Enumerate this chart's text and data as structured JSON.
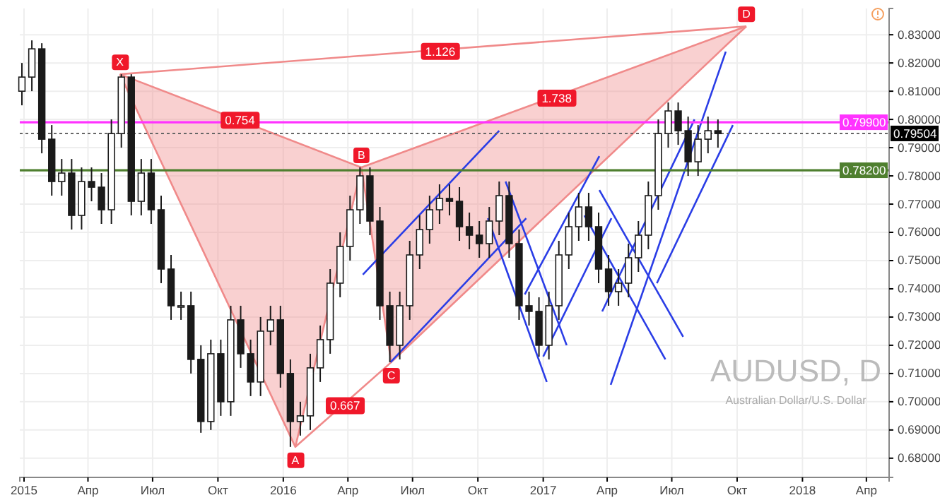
{
  "chart_data": {
    "type": "candlestick",
    "title": "AUDUSD, D",
    "subtitle": "Australian Dollar/U.S. Dollar",
    "xlim": [
      "2014-12-26",
      "2018-05-03"
    ],
    "xticks": [
      {
        "value": "2015-01-01",
        "label": "2015"
      },
      {
        "value": "2015-04-01",
        "label": "Апр"
      },
      {
        "value": "2015-07-01",
        "label": "Июл"
      },
      {
        "value": "2015-10-01",
        "label": "Окт"
      },
      {
        "value": "2016-01-01",
        "label": "2016"
      },
      {
        "value": "2016-04-01",
        "label": "Апр"
      },
      {
        "value": "2016-07-01",
        "label": "Июл"
      },
      {
        "value": "2016-10-01",
        "label": "Окт"
      },
      {
        "value": "2017-01-01",
        "label": "2017"
      },
      {
        "value": "2017-04-01",
        "label": "Апр"
      },
      {
        "value": "2017-07-01",
        "label": "Июл"
      },
      {
        "value": "2017-10-01",
        "label": "Окт"
      },
      {
        "value": "2018-01-01",
        "label": "2018"
      },
      {
        "value": "2018-04-01",
        "label": "Апр"
      }
    ],
    "ylim": [
      0.6732,
      0.8393
    ],
    "yticks": [
      {
        "value": 0.68,
        "label": "0.68000"
      },
      {
        "value": 0.69,
        "label": "0.69000"
      },
      {
        "value": 0.7,
        "label": "0.70000"
      },
      {
        "value": 0.71,
        "label": "0.71000"
      },
      {
        "value": 0.72,
        "label": "0.72000"
      },
      {
        "value": 0.73,
        "label": "0.73000"
      },
      {
        "value": 0.74,
        "label": "0.74000"
      },
      {
        "value": 0.75,
        "label": "0.75000"
      },
      {
        "value": 0.76,
        "label": "0.76000"
      },
      {
        "value": 0.77,
        "label": "0.77000"
      },
      {
        "value": 0.78,
        "label": "0.78000"
      },
      {
        "value": 0.79,
        "label": "0.79000"
      },
      {
        "value": 0.8,
        "label": "0.80000"
      },
      {
        "value": 0.81,
        "label": "0.81000"
      },
      {
        "value": 0.82,
        "label": "0.82000"
      },
      {
        "value": 0.83,
        "label": "0.83000"
      }
    ],
    "grid": true,
    "x": [
      "2014-12-29",
      "2015-01-12",
      "2015-01-26",
      "2015-02-09",
      "2015-02-23",
      "2015-03-09",
      "2015-03-23",
      "2015-04-06",
      "2015-04-20",
      "2015-05-04",
      "2015-05-18",
      "2015-06-01",
      "2015-06-15",
      "2015-06-29",
      "2015-07-13",
      "2015-07-27",
      "2015-08-10",
      "2015-08-24",
      "2015-09-07",
      "2015-09-21",
      "2015-10-05",
      "2015-10-19",
      "2015-11-02",
      "2015-11-16",
      "2015-11-30",
      "2015-12-14",
      "2015-12-28",
      "2016-01-11",
      "2016-01-25",
      "2016-02-08",
      "2016-02-22",
      "2016-03-07",
      "2016-03-21",
      "2016-04-04",
      "2016-04-18",
      "2016-05-02",
      "2016-05-16",
      "2016-05-30",
      "2016-06-13",
      "2016-06-27",
      "2016-07-11",
      "2016-07-25",
      "2016-08-08",
      "2016-08-22",
      "2016-09-05",
      "2016-09-19",
      "2016-10-03",
      "2016-10-17",
      "2016-10-31",
      "2016-11-14",
      "2016-11-28",
      "2016-12-12",
      "2016-12-26",
      "2017-01-09",
      "2017-01-23",
      "2017-02-06",
      "2017-02-20",
      "2017-03-06",
      "2017-03-20",
      "2017-04-03",
      "2017-04-17",
      "2017-05-01",
      "2017-05-15",
      "2017-05-29",
      "2017-06-12",
      "2017-06-26",
      "2017-07-10",
      "2017-07-24",
      "2017-08-07",
      "2017-08-21",
      "2017-09-04"
    ],
    "ohlc": [
      [
        0.81,
        0.82,
        0.805,
        0.815
      ],
      [
        0.815,
        0.828,
        0.81,
        0.825
      ],
      [
        0.825,
        0.827,
        0.788,
        0.793
      ],
      [
        0.793,
        0.798,
        0.773,
        0.778
      ],
      [
        0.778,
        0.786,
        0.773,
        0.781
      ],
      [
        0.781,
        0.786,
        0.761,
        0.766
      ],
      [
        0.766,
        0.783,
        0.761,
        0.778
      ],
      [
        0.778,
        0.783,
        0.771,
        0.776
      ],
      [
        0.776,
        0.781,
        0.763,
        0.768
      ],
      [
        0.768,
        0.8,
        0.763,
        0.795
      ],
      [
        0.795,
        0.816,
        0.79,
        0.815
      ],
      [
        0.815,
        0.816,
        0.766,
        0.771
      ],
      [
        0.771,
        0.786,
        0.766,
        0.781
      ],
      [
        0.781,
        0.786,
        0.763,
        0.768
      ],
      [
        0.768,
        0.773,
        0.742,
        0.747
      ],
      [
        0.747,
        0.752,
        0.729,
        0.734
      ],
      [
        0.734,
        0.739,
        0.729,
        0.734
      ],
      [
        0.734,
        0.739,
        0.71,
        0.715
      ],
      [
        0.715,
        0.72,
        0.689,
        0.693
      ],
      [
        0.693,
        0.722,
        0.69,
        0.717
      ],
      [
        0.717,
        0.722,
        0.695,
        0.7
      ],
      [
        0.7,
        0.734,
        0.695,
        0.729
      ],
      [
        0.729,
        0.734,
        0.712,
        0.717
      ],
      [
        0.717,
        0.722,
        0.702,
        0.707
      ],
      [
        0.707,
        0.73,
        0.702,
        0.725
      ],
      [
        0.725,
        0.734,
        0.72,
        0.729
      ],
      [
        0.729,
        0.734,
        0.705,
        0.71
      ],
      [
        0.71,
        0.715,
        0.684,
        0.693
      ],
      [
        0.693,
        0.7,
        0.688,
        0.695
      ],
      [
        0.695,
        0.717,
        0.69,
        0.712
      ],
      [
        0.712,
        0.727,
        0.707,
        0.722
      ],
      [
        0.722,
        0.747,
        0.717,
        0.742
      ],
      [
        0.742,
        0.76,
        0.737,
        0.755
      ],
      [
        0.755,
        0.773,
        0.75,
        0.768
      ],
      [
        0.768,
        0.783,
        0.763,
        0.78
      ],
      [
        0.78,
        0.783,
        0.759,
        0.764
      ],
      [
        0.764,
        0.769,
        0.729,
        0.734
      ],
      [
        0.734,
        0.739,
        0.714,
        0.72
      ],
      [
        0.72,
        0.739,
        0.715,
        0.734
      ],
      [
        0.734,
        0.757,
        0.729,
        0.752
      ],
      [
        0.752,
        0.766,
        0.747,
        0.761
      ],
      [
        0.761,
        0.773,
        0.756,
        0.768
      ],
      [
        0.768,
        0.777,
        0.763,
        0.772
      ],
      [
        0.772,
        0.777,
        0.766,
        0.771
      ],
      [
        0.771,
        0.776,
        0.757,
        0.762
      ],
      [
        0.762,
        0.767,
        0.754,
        0.759
      ],
      [
        0.759,
        0.764,
        0.751,
        0.756
      ],
      [
        0.756,
        0.769,
        0.751,
        0.764
      ],
      [
        0.764,
        0.778,
        0.759,
        0.773
      ],
      [
        0.773,
        0.778,
        0.751,
        0.756
      ],
      [
        0.756,
        0.761,
        0.729,
        0.734
      ],
      [
        0.734,
        0.739,
        0.727,
        0.732
      ],
      [
        0.732,
        0.737,
        0.716,
        0.72
      ],
      [
        0.72,
        0.739,
        0.715,
        0.734
      ],
      [
        0.734,
        0.757,
        0.729,
        0.752
      ],
      [
        0.752,
        0.767,
        0.747,
        0.762
      ],
      [
        0.762,
        0.774,
        0.757,
        0.769
      ],
      [
        0.769,
        0.774,
        0.757,
        0.762
      ],
      [
        0.762,
        0.767,
        0.742,
        0.747
      ],
      [
        0.747,
        0.752,
        0.734,
        0.739
      ],
      [
        0.739,
        0.747,
        0.734,
        0.742
      ],
      [
        0.742,
        0.756,
        0.737,
        0.751
      ],
      [
        0.751,
        0.764,
        0.746,
        0.759
      ],
      [
        0.759,
        0.778,
        0.754,
        0.773
      ],
      [
        0.773,
        0.8,
        0.768,
        0.795
      ],
      [
        0.795,
        0.806,
        0.79,
        0.803
      ],
      [
        0.803,
        0.806,
        0.791,
        0.796
      ],
      [
        0.796,
        0.801,
        0.78,
        0.785
      ],
      [
        0.785,
        0.798,
        0.78,
        0.793
      ],
      [
        0.793,
        0.801,
        0.788,
        0.796
      ],
      [
        0.796,
        0.8,
        0.79,
        0.795
      ]
    ],
    "series": [
      {
        "type": "line",
        "color": "#f08a8a",
        "x": [
          "2015-05-16",
          "2016-01-18",
          "2016-04-20"
        ],
        "values": [
          0.816,
          0.684,
          0.783
        ],
        "lower": [
          0.816,
          0.684,
          0.783
        ],
        "upper": [
          0.816,
          0.792,
          0.783
        ]
      },
      {
        "type": "line",
        "color": "#f08a8a",
        "x": [
          "2016-04-20",
          "2016-06-01",
          "2017-10-14"
        ],
        "values": [
          0.783,
          0.714,
          0.833
        ],
        "lower": [
          0.783,
          0.714,
          0.833
        ],
        "upper": [
          0.783,
          0.787,
          0.833
        ]
      },
      {
        "type": "line",
        "color": "#f08a8a",
        "x": [
          "2015-05-16",
          "2016-04-20"
        ],
        "values": [
          0.816,
          0.783
        ]
      },
      {
        "type": "line",
        "color": "#f08a8a",
        "x": [
          "2016-04-20",
          "2017-10-14"
        ],
        "values": [
          0.783,
          0.833
        ]
      },
      {
        "type": "line",
        "color": "#f08a8a",
        "x": [
          "2015-05-16",
          "2017-10-14"
        ],
        "values": [
          0.816,
          0.833
        ]
      },
      {
        "type": "line",
        "color": "#f08a8a",
        "x": [
          "2016-01-18",
          "2016-06-01"
        ],
        "values": [
          0.684,
          0.714
        ]
      },
      {
        "type": "line",
        "color": "#2a3de6",
        "x": [
          "2016-04-22",
          "2016-10-31"
        ],
        "values": [
          0.745,
          0.796
        ]
      },
      {
        "type": "line",
        "color": "#2a3de6",
        "x": [
          "2016-05-31",
          "2016-12-08"
        ],
        "values": [
          0.714,
          0.765
        ]
      },
      {
        "type": "line",
        "color": "#2a3de6",
        "x": [
          "2016-10-15",
          "2017-01-06"
        ],
        "values": [
          0.765,
          0.707
        ]
      },
      {
        "type": "line",
        "color": "#2a3de6",
        "x": [
          "2016-11-09",
          "2017-02-03"
        ],
        "values": [
          0.778,
          0.72
        ]
      },
      {
        "type": "line",
        "color": "#2a3de6",
        "x": [
          "2016-12-06",
          "2017-03-21"
        ],
        "values": [
          0.738,
          0.787
        ]
      },
      {
        "type": "line",
        "color": "#2a3de6",
        "x": [
          "2017-01-01",
          "2017-04-07"
        ],
        "values": [
          0.716,
          0.765
        ]
      },
      {
        "type": "line",
        "color": "#2a3de6",
        "x": [
          "2017-03-21",
          "2017-07-17"
        ],
        "values": [
          0.775,
          0.723
        ]
      },
      {
        "type": "line",
        "color": "#2a3de6",
        "x": [
          "2017-02-28",
          "2017-06-22"
        ],
        "values": [
          0.766,
          0.715
        ]
      },
      {
        "type": "line",
        "color": "#2a3de6",
        "x": [
          "2017-03-25",
          "2017-08-02"
        ],
        "values": [
          0.732,
          0.8
        ]
      },
      {
        "type": "line",
        "color": "#2a3de6",
        "x": [
          "2017-04-06",
          "2017-09-15"
        ],
        "values": [
          0.706,
          0.824
        ]
      },
      {
        "type": "line",
        "color": "#2a3de6",
        "x": [
          "2017-06-10",
          "2017-09-25"
        ],
        "values": [
          0.742,
          0.798
        ]
      }
    ],
    "ref_lines": [
      {
        "axis": "y",
        "value": 0.799,
        "label": "0.79900",
        "color": "#ff33ff",
        "line_style": "solid"
      },
      {
        "axis": "y",
        "value": 0.79504,
        "label": "0.79504",
        "color": "#666666",
        "line_style": "dotted"
      },
      {
        "axis": "y",
        "value": 0.782,
        "label": "0.78200",
        "color": "#4f7f2f",
        "line_style": "solid"
      }
    ],
    "annotations": [
      {
        "text": "X",
        "x": "2015-05-16",
        "y": 0.816
      },
      {
        "text": "A",
        "x": "2016-01-18",
        "y": 0.684
      },
      {
        "text": "B",
        "x": "2016-04-20",
        "y": 0.783
      },
      {
        "text": "C",
        "x": "2016-06-01",
        "y": 0.714
      },
      {
        "text": "D",
        "x": "2017-10-14",
        "y": 0.833
      },
      {
        "text": "0.754",
        "x": "2015-11-01",
        "y": 0.7997
      },
      {
        "text": "1.738",
        "x": "2017-01-20",
        "y": 0.8075
      },
      {
        "text": "1.126",
        "x": "2016-08-09",
        "y": 0.8241
      },
      {
        "text": "0.667",
        "x": "2016-03-28",
        "y": 0.6986
      }
    ]
  }
}
